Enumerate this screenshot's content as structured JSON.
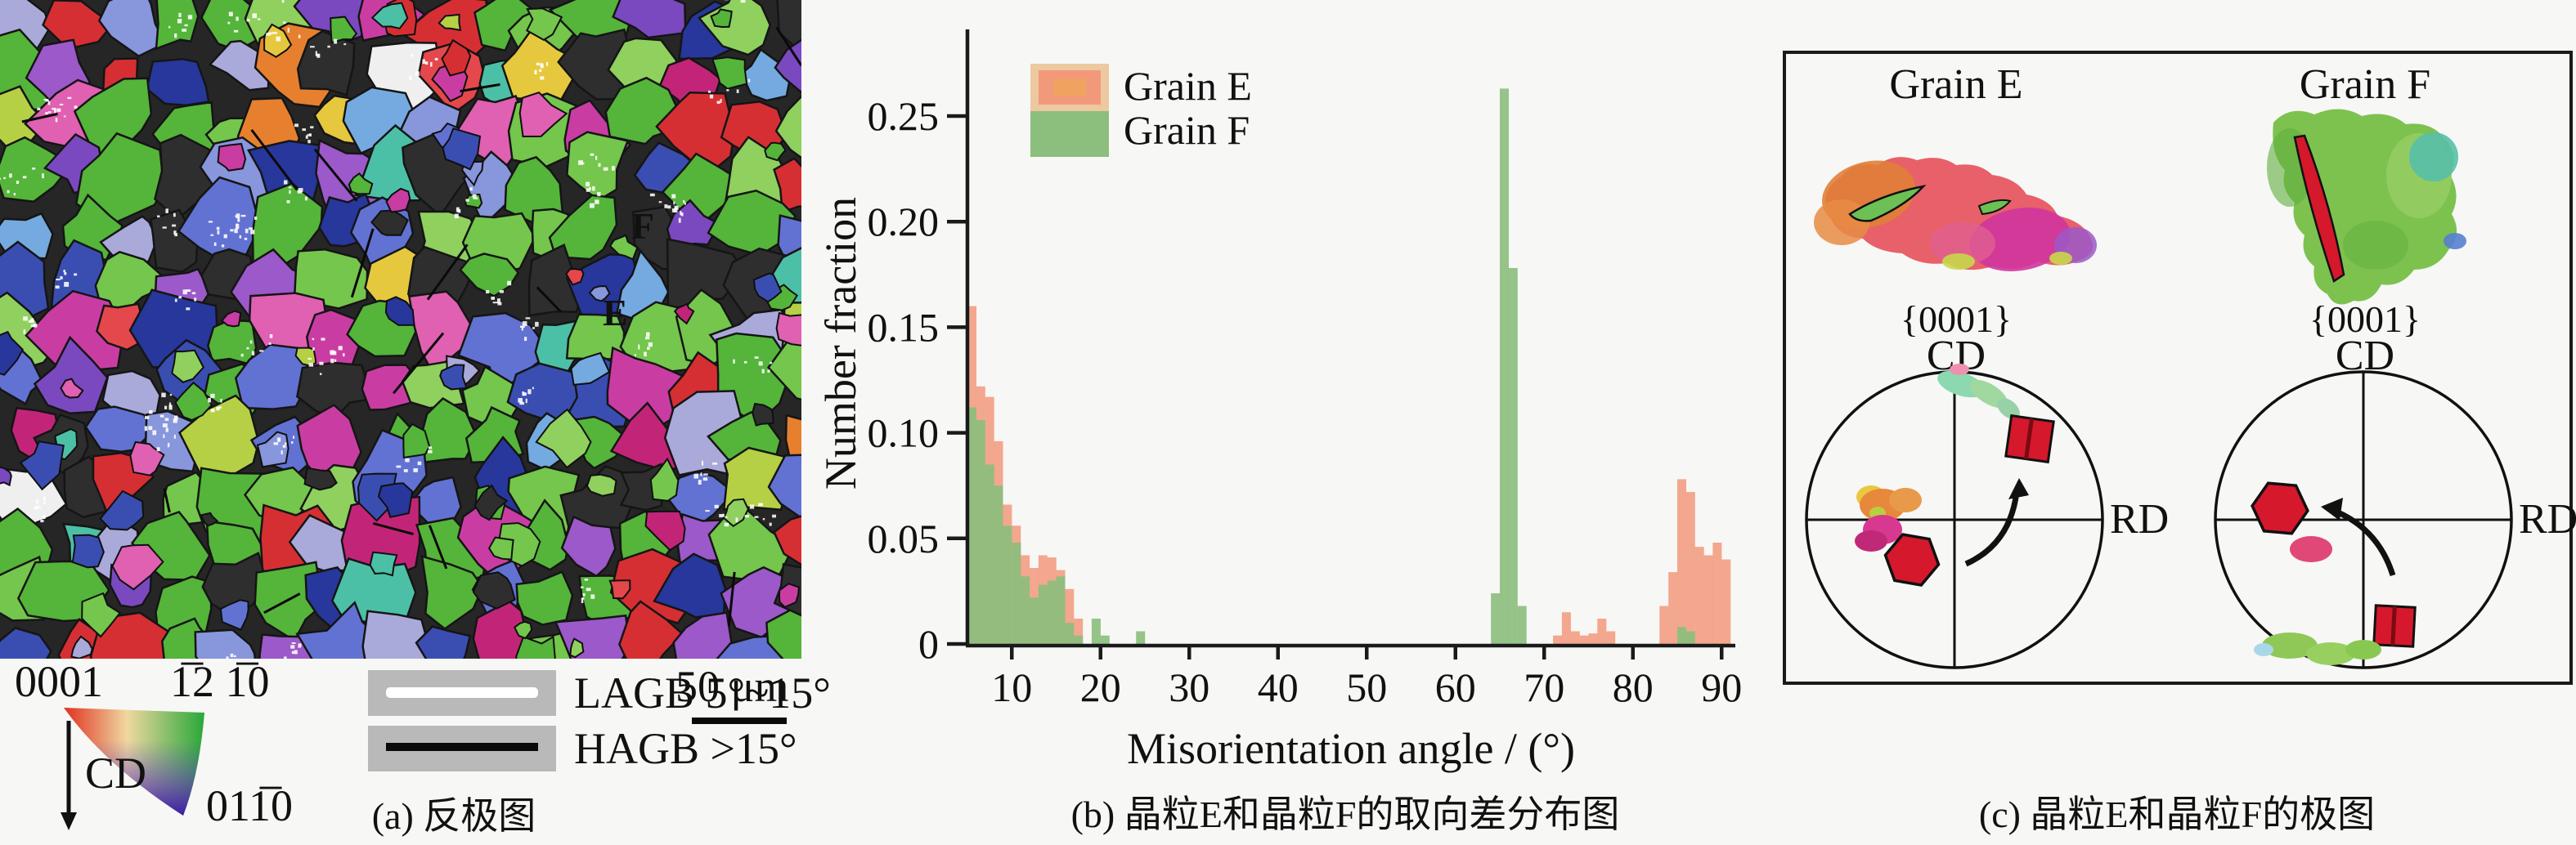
{
  "colors": {
    "grain_e": "#F2997B",
    "grain_e_edge": "#ECC9A0",
    "grain_e_core": "#F0A260",
    "grain_f": "#8CBE7E",
    "axis": "#1a1a1a",
    "crystal_red": "#D5182C",
    "map_bg": "#262626",
    "page_bg": "#f7f7f5"
  },
  "panel_a": {
    "caption": "(a) 反极图",
    "grain_label_e": "E",
    "grain_label_f": "F",
    "ipf_key": {
      "corner_top_left": "0001",
      "corner_top_right": "1̅2 1̅0",
      "corner_bottom": "011̅0",
      "direction": "CD"
    },
    "boundary_legend": {
      "lagb": "LAGB 5°~15°",
      "hagb": "HAGB >15°"
    },
    "scale_bar_label": "50 μm",
    "map_palette": [
      [
        "#55b43a",
        20
      ],
      [
        "#74c64c",
        12
      ],
      [
        "#8fd05e",
        7
      ],
      [
        "#3a4eb2",
        9
      ],
      [
        "#27379b",
        6
      ],
      [
        "#6272d2",
        5
      ],
      [
        "#8896dc",
        3
      ],
      [
        "#7a49c0",
        5
      ],
      [
        "#9c59c9",
        4
      ],
      [
        "#c93da3",
        5
      ],
      [
        "#e060b2",
        3
      ],
      [
        "#d62f33",
        5
      ],
      [
        "#e4484c",
        2
      ],
      [
        "#e6802e",
        2
      ],
      [
        "#4cc0a6",
        3
      ],
      [
        "#74aadf",
        3
      ],
      [
        "#b6d046",
        3
      ],
      [
        "#a9a9da",
        3
      ],
      [
        "#e6c83e",
        2
      ],
      [
        "#c22578",
        2
      ],
      [
        "#efefef",
        1
      ],
      [
        "#2e2e2e",
        10
      ]
    ]
  },
  "panel_b": {
    "caption": "(b) 晶粒E和晶粒F的取向差分布图",
    "ytick_labels": [
      "0",
      "0.05",
      "0.10",
      "0.15",
      "0.20",
      "0.25"
    ],
    "xtick_labels": [
      "10",
      "20",
      "30",
      "40",
      "50",
      "60",
      "70",
      "80",
      "90"
    ]
  },
  "chart_data": {
    "type": "bar",
    "title": "",
    "xlabel": "Misorientation angle / (°)",
    "ylabel": "Number fraction",
    "xlim": [
      5,
      91
    ],
    "ylim": [
      0,
      0.27
    ],
    "xticks": [
      10,
      20,
      30,
      40,
      50,
      60,
      70,
      80,
      90
    ],
    "yticks": [
      0,
      0.05,
      0.1,
      0.15,
      0.2,
      0.25
    ],
    "bin_width": 1,
    "grid": false,
    "legend_position": "top-left",
    "series": [
      {
        "name": "Grain E",
        "color": "#F2997B",
        "points": [
          [
            5,
            0.16
          ],
          [
            6,
            0.122
          ],
          [
            7,
            0.117
          ],
          [
            8,
            0.096
          ],
          [
            9,
            0.066
          ],
          [
            10,
            0.056
          ],
          [
            11,
            0.042
          ],
          [
            12,
            0.036
          ],
          [
            13,
            0.042
          ],
          [
            14,
            0.041
          ],
          [
            15,
            0.035
          ],
          [
            16,
            0.026
          ],
          [
            17,
            0.012
          ],
          [
            71,
            0.004
          ],
          [
            72,
            0.015
          ],
          [
            73,
            0.006
          ],
          [
            74,
            0.004
          ],
          [
            75,
            0.005
          ],
          [
            76,
            0.012
          ],
          [
            77,
            0.006
          ],
          [
            83,
            0.018
          ],
          [
            84,
            0.034
          ],
          [
            85,
            0.078
          ],
          [
            86,
            0.072
          ],
          [
            87,
            0.046
          ],
          [
            88,
            0.042
          ],
          [
            89,
            0.048
          ],
          [
            90,
            0.04
          ]
        ]
      },
      {
        "name": "Grain F",
        "color": "#8CBE7E",
        "points": [
          [
            5,
            0.112
          ],
          [
            6,
            0.106
          ],
          [
            7,
            0.085
          ],
          [
            8,
            0.075
          ],
          [
            9,
            0.056
          ],
          [
            10,
            0.048
          ],
          [
            11,
            0.032
          ],
          [
            12,
            0.022
          ],
          [
            13,
            0.028
          ],
          [
            14,
            0.03
          ],
          [
            15,
            0.032
          ],
          [
            16,
            0.01
          ],
          [
            17,
            0.004
          ],
          [
            19,
            0.012
          ],
          [
            20,
            0.004
          ],
          [
            24,
            0.006
          ],
          [
            64,
            0.024
          ],
          [
            65,
            0.263
          ],
          [
            66,
            0.178
          ],
          [
            67,
            0.018
          ],
          [
            85,
            0.008
          ],
          [
            86,
            0.006
          ]
        ]
      }
    ]
  },
  "panel_c": {
    "caption": "(c) 晶粒E和晶粒F的极图",
    "grain_e_title": "Grain E",
    "grain_f_title": "Grain F",
    "pole_family": "{0001}",
    "axis_top": "CD",
    "axis_right": "RD"
  }
}
